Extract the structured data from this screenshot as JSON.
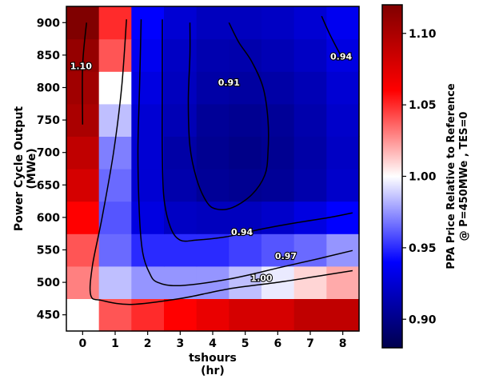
{
  "chart_data": {
    "type": "heatmap",
    "title": "",
    "xlabel": "tshours\n(hr)",
    "ylabel": "Power Cycle Output\n(MWe)",
    "colorbar_label": "PPA Price Relative to Reference\n@ P=450MWe , TES=0",
    "x": [
      0,
      1,
      2,
      3,
      4,
      5,
      6,
      7,
      8
    ],
    "y": [
      450,
      500,
      550,
      600,
      650,
      700,
      750,
      800,
      850,
      900
    ],
    "xlim": [
      -0.5,
      8.5
    ],
    "ylim": [
      425,
      925
    ],
    "colorbar": {
      "range": [
        0.88,
        1.12
      ],
      "ticks": [
        0.9,
        0.95,
        1.0,
        1.05,
        1.1
      ],
      "tick_labels": [
        "0.90",
        "0.95",
        "1.00",
        "1.05",
        "1.10"
      ],
      "colormap": "seismic"
    },
    "z": [
      [
        1.0,
        1.04,
        1.05,
        1.06,
        1.07,
        1.08,
        1.08,
        1.09,
        1.09
      ],
      [
        1.03,
        0.985,
        0.975,
        0.975,
        0.975,
        0.985,
        0.995,
        1.01,
        1.02
      ],
      [
        1.04,
        0.965,
        0.95,
        0.95,
        0.95,
        0.955,
        0.96,
        0.965,
        0.975
      ],
      [
        1.06,
        0.96,
        0.93,
        0.92,
        0.918,
        0.918,
        0.922,
        0.93,
        0.94
      ],
      [
        1.08,
        0.965,
        0.925,
        0.912,
        0.905,
        0.903,
        0.905,
        0.912,
        0.922
      ],
      [
        1.09,
        0.97,
        0.925,
        0.91,
        0.903,
        0.9,
        0.903,
        0.91,
        0.92
      ],
      [
        1.1,
        0.985,
        0.925,
        0.915,
        0.905,
        0.903,
        0.905,
        0.912,
        0.922
      ],
      [
        1.105,
        1.0,
        0.93,
        0.918,
        0.91,
        0.908,
        0.91,
        0.915,
        0.925
      ],
      [
        1.11,
        1.04,
        0.935,
        0.92,
        0.913,
        0.912,
        0.915,
        0.92,
        0.93
      ],
      [
        1.12,
        1.05,
        0.94,
        0.925,
        0.918,
        0.918,
        0.92,
        0.925,
        0.935
      ]
    ],
    "contour_levels": [
      {
        "value": 1.1,
        "label": "1.10",
        "label_at": [
          -0.05,
          833
        ]
      },
      {
        "value": 0.91,
        "label": "0.91",
        "label_at": [
          4.5,
          808
        ]
      },
      {
        "value": 0.94,
        "label": "0.94",
        "label_at": [
          7.95,
          848
        ]
      },
      {
        "value": 0.94,
        "label": "0.94",
        "label_at": [
          4.9,
          578
        ]
      },
      {
        "value": 0.97,
        "label": "0.97",
        "label_at": [
          6.25,
          541
        ]
      },
      {
        "value": 1.0,
        "label": "1.00",
        "label_at": [
          5.5,
          507
        ]
      }
    ],
    "contours": [
      {
        "value": 1.1,
        "points": [
          [
            0.0,
            743
          ],
          [
            0.0,
            833
          ],
          [
            0.12,
            900
          ]
        ]
      },
      {
        "value": 0.91,
        "points": [
          [
            3.3,
            900
          ],
          [
            3.3,
            850
          ],
          [
            3.25,
            780
          ],
          [
            3.3,
            710
          ],
          [
            3.5,
            660
          ],
          [
            3.8,
            625
          ],
          [
            4.1,
            613
          ],
          [
            4.6,
            615
          ],
          [
            5.2,
            635
          ],
          [
            5.6,
            665
          ],
          [
            5.7,
            700
          ],
          [
            5.7,
            750
          ],
          [
            5.55,
            800
          ],
          [
            5.2,
            840
          ],
          [
            4.8,
            870
          ],
          [
            4.5,
            900
          ]
        ]
      },
      {
        "value": 0.94,
        "points": [
          [
            7.35,
            910
          ],
          [
            7.6,
            882
          ],
          [
            7.95,
            848
          ]
        ]
      },
      {
        "value": 0.94,
        "points": [
          [
            2.45,
            905
          ],
          [
            2.45,
            800
          ],
          [
            2.45,
            700
          ],
          [
            2.5,
            630
          ],
          [
            2.7,
            585
          ],
          [
            3.0,
            565
          ],
          [
            3.5,
            565
          ],
          [
            4.4,
            570
          ],
          [
            5.5,
            582
          ],
          [
            6.6,
            592
          ],
          [
            7.6,
            600
          ],
          [
            8.3,
            607
          ]
        ]
      },
      {
        "value": 0.97,
        "points": [
          [
            1.8,
            905
          ],
          [
            1.75,
            800
          ],
          [
            1.7,
            700
          ],
          [
            1.75,
            600
          ],
          [
            1.85,
            545
          ],
          [
            2.05,
            515
          ],
          [
            2.3,
            500
          ],
          [
            3.0,
            495
          ],
          [
            4.5,
            505
          ],
          [
            6.0,
            522
          ],
          [
            7.3,
            537
          ],
          [
            8.3,
            549
          ]
        ]
      },
      {
        "value": 1.0,
        "points": [
          [
            1.35,
            905
          ],
          [
            1.2,
            800
          ],
          [
            0.95,
            700
          ],
          [
            0.6,
            600
          ],
          [
            0.3,
            525
          ],
          [
            0.25,
            480
          ],
          [
            0.6,
            472
          ],
          [
            1.5,
            466
          ],
          [
            3.0,
            475
          ],
          [
            4.5,
            490
          ],
          [
            6.0,
            500
          ],
          [
            7.3,
            510
          ],
          [
            8.3,
            518
          ]
        ]
      }
    ]
  }
}
